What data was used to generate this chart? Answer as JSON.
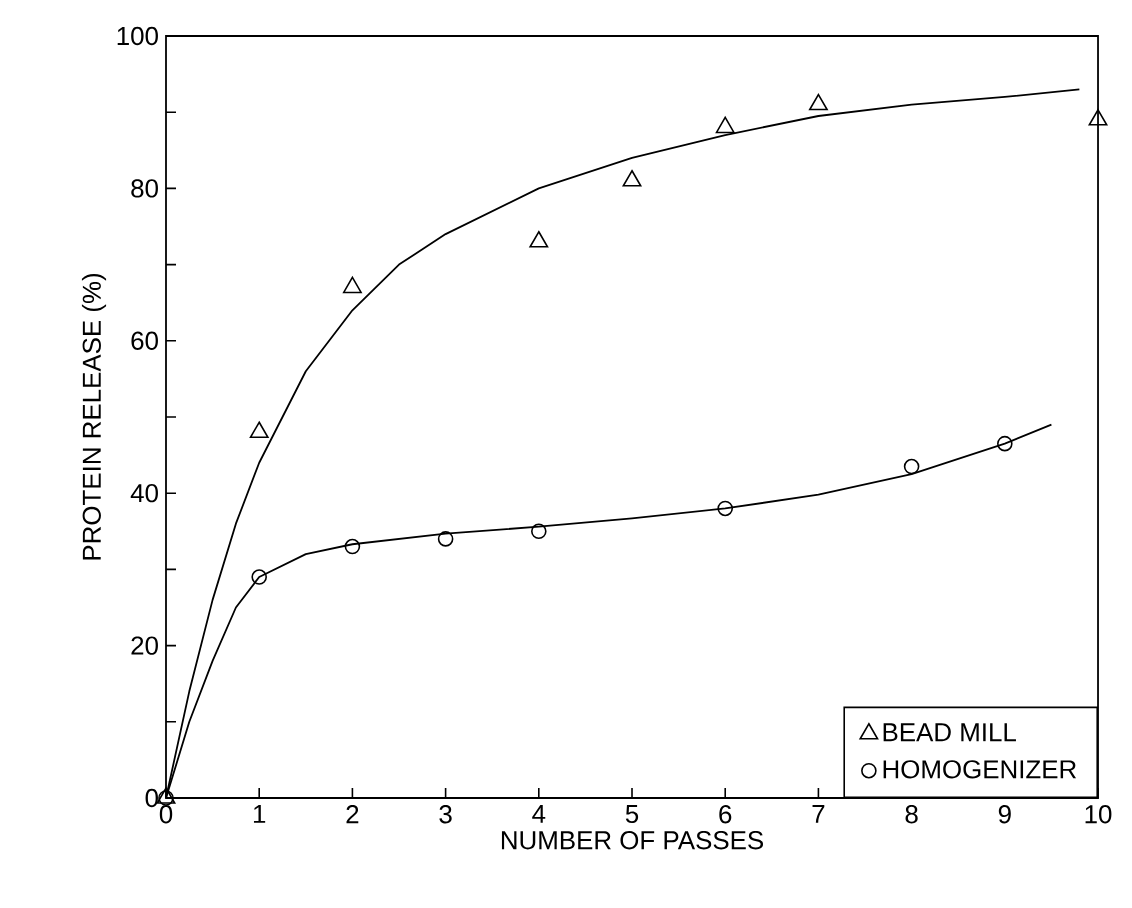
{
  "chart_data": {
    "type": "scatter",
    "xlabel": "NUMBER OF PASSES",
    "ylabel": "PROTEIN RELEASE (%)",
    "xlim": [
      0,
      10
    ],
    "ylim": [
      0,
      100
    ],
    "xticks": [
      0,
      1,
      2,
      3,
      4,
      5,
      6,
      7,
      8,
      9,
      10
    ],
    "yticks": [
      0,
      {
        "value": 10,
        "label": null
      },
      20,
      {
        "value": 30,
        "label": null
      },
      40,
      {
        "value": 50,
        "label": null
      },
      60,
      {
        "value": 70,
        "label": null
      },
      80,
      {
        "value": 90,
        "label": null
      },
      100
    ],
    "grid": false,
    "legend": "bottom right",
    "series": [
      {
        "name": "BEAD MILL",
        "marker": "triangle",
        "color": "#000000",
        "x": [
          0,
          1,
          2,
          4,
          5,
          6,
          7,
          10
        ],
        "values": [
          0,
          48,
          67,
          73,
          81,
          88,
          91,
          89
        ]
      },
      {
        "name": "HOMOGENIZER",
        "marker": "circle",
        "color": "#000000",
        "x": [
          0,
          1,
          2,
          3,
          4,
          6,
          8,
          9
        ],
        "values": [
          0,
          29,
          33,
          34,
          35,
          38,
          43.5,
          46.5
        ]
      },
      {
        "type": "line",
        "marker": "none",
        "line_style": "solid",
        "color": "#000000",
        "x": [
          0,
          0.25,
          0.5,
          0.75,
          1,
          1.5,
          2,
          2.5,
          3,
          4,
          5,
          6,
          7,
          8,
          9,
          9.8
        ],
        "values": [
          0,
          14,
          26,
          36,
          44,
          56,
          64,
          70,
          74,
          80,
          84,
          87,
          89.5,
          91,
          92,
          93
        ]
      },
      {
        "type": "line",
        "marker": "none",
        "line_style": "solid",
        "color": "#000000",
        "x": [
          0,
          0.25,
          0.5,
          0.75,
          1,
          1.5,
          2,
          3,
          4,
          5,
          6,
          7,
          8,
          9,
          9.5
        ],
        "values": [
          0,
          10,
          18,
          25,
          29,
          32,
          33.3,
          34.7,
          35.6,
          36.7,
          38,
          39.8,
          42.5,
          46.5,
          49
        ]
      }
    ]
  }
}
